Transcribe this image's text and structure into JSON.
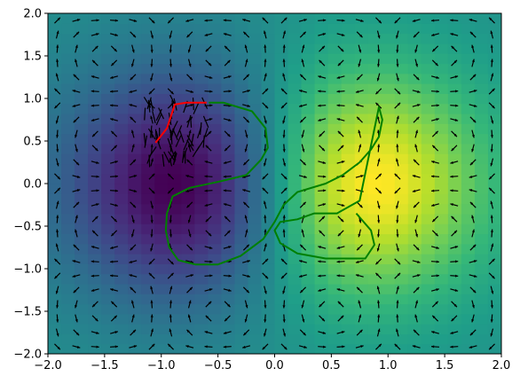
{
  "chart_data": {
    "type": "heatmap",
    "title": "",
    "xlabel": "",
    "ylabel": "",
    "xlim": [
      -2.0,
      2.0
    ],
    "ylim": [
      -2.0,
      2.0
    ],
    "grid": false,
    "colormap": "viridis",
    "field_description": "scalar field f(x,y) = x*exp(-x^2-y^2) style potential with quiver of a periodic vector field",
    "x_ticks": [
      "−2.0",
      "−1.5",
      "−1.0",
      "−0.5",
      "0.0",
      "0.5",
      "1.0",
      "1.5",
      "2.0"
    ],
    "y_ticks": [
      "2.0",
      "1.5",
      "1.0",
      "0.5",
      "0.0",
      "−0.5",
      "−1.0",
      "−1.5",
      "−2.0"
    ],
    "x_tick_values": [
      -2.0,
      -1.5,
      -1.0,
      -0.5,
      0.0,
      0.5,
      1.0,
      1.5,
      2.0
    ],
    "y_tick_values": [
      2.0,
      1.5,
      1.0,
      0.5,
      0.0,
      -0.5,
      -1.0,
      -1.5,
      -2.0
    ],
    "series": [
      {
        "type": "line",
        "color": "#008000",
        "x": [
          -0.58,
          -0.45,
          -0.2,
          -0.08,
          -0.06,
          -0.12,
          -0.25,
          -0.5,
          -0.75,
          -0.9,
          -0.95,
          -0.96,
          -0.93,
          -0.85,
          -0.7,
          -0.5,
          -0.3,
          -0.1,
          0.0,
          0.08,
          0.2,
          0.45,
          0.6,
          0.75,
          0.85,
          0.92,
          0.95,
          0.92,
          0.75,
          0.55,
          0.35,
          0.2,
          0.05,
          0.0,
          0.05,
          0.2,
          0.45,
          0.65,
          0.8,
          0.88,
          0.85,
          0.72
        ],
        "y": [
          0.95,
          0.95,
          0.85,
          0.65,
          0.42,
          0.28,
          0.1,
          0.02,
          -0.05,
          -0.15,
          -0.35,
          -0.55,
          -0.75,
          -0.9,
          -0.95,
          -0.95,
          -0.85,
          -0.65,
          -0.45,
          -0.25,
          -0.1,
          0.0,
          0.1,
          0.25,
          0.4,
          0.55,
          0.75,
          0.9,
          -0.2,
          -0.35,
          -0.35,
          -0.42,
          -0.45,
          -0.55,
          -0.7,
          -0.82,
          -0.88,
          -0.88,
          -0.88,
          -0.72,
          -0.55,
          -0.35
        ]
      },
      {
        "type": "line",
        "color": "#ff0000",
        "x": [
          -1.05,
          -0.95,
          -0.88,
          -0.78,
          -0.6
        ],
        "y": [
          0.48,
          0.65,
          0.93,
          0.95,
          0.95
        ]
      }
    ]
  }
}
